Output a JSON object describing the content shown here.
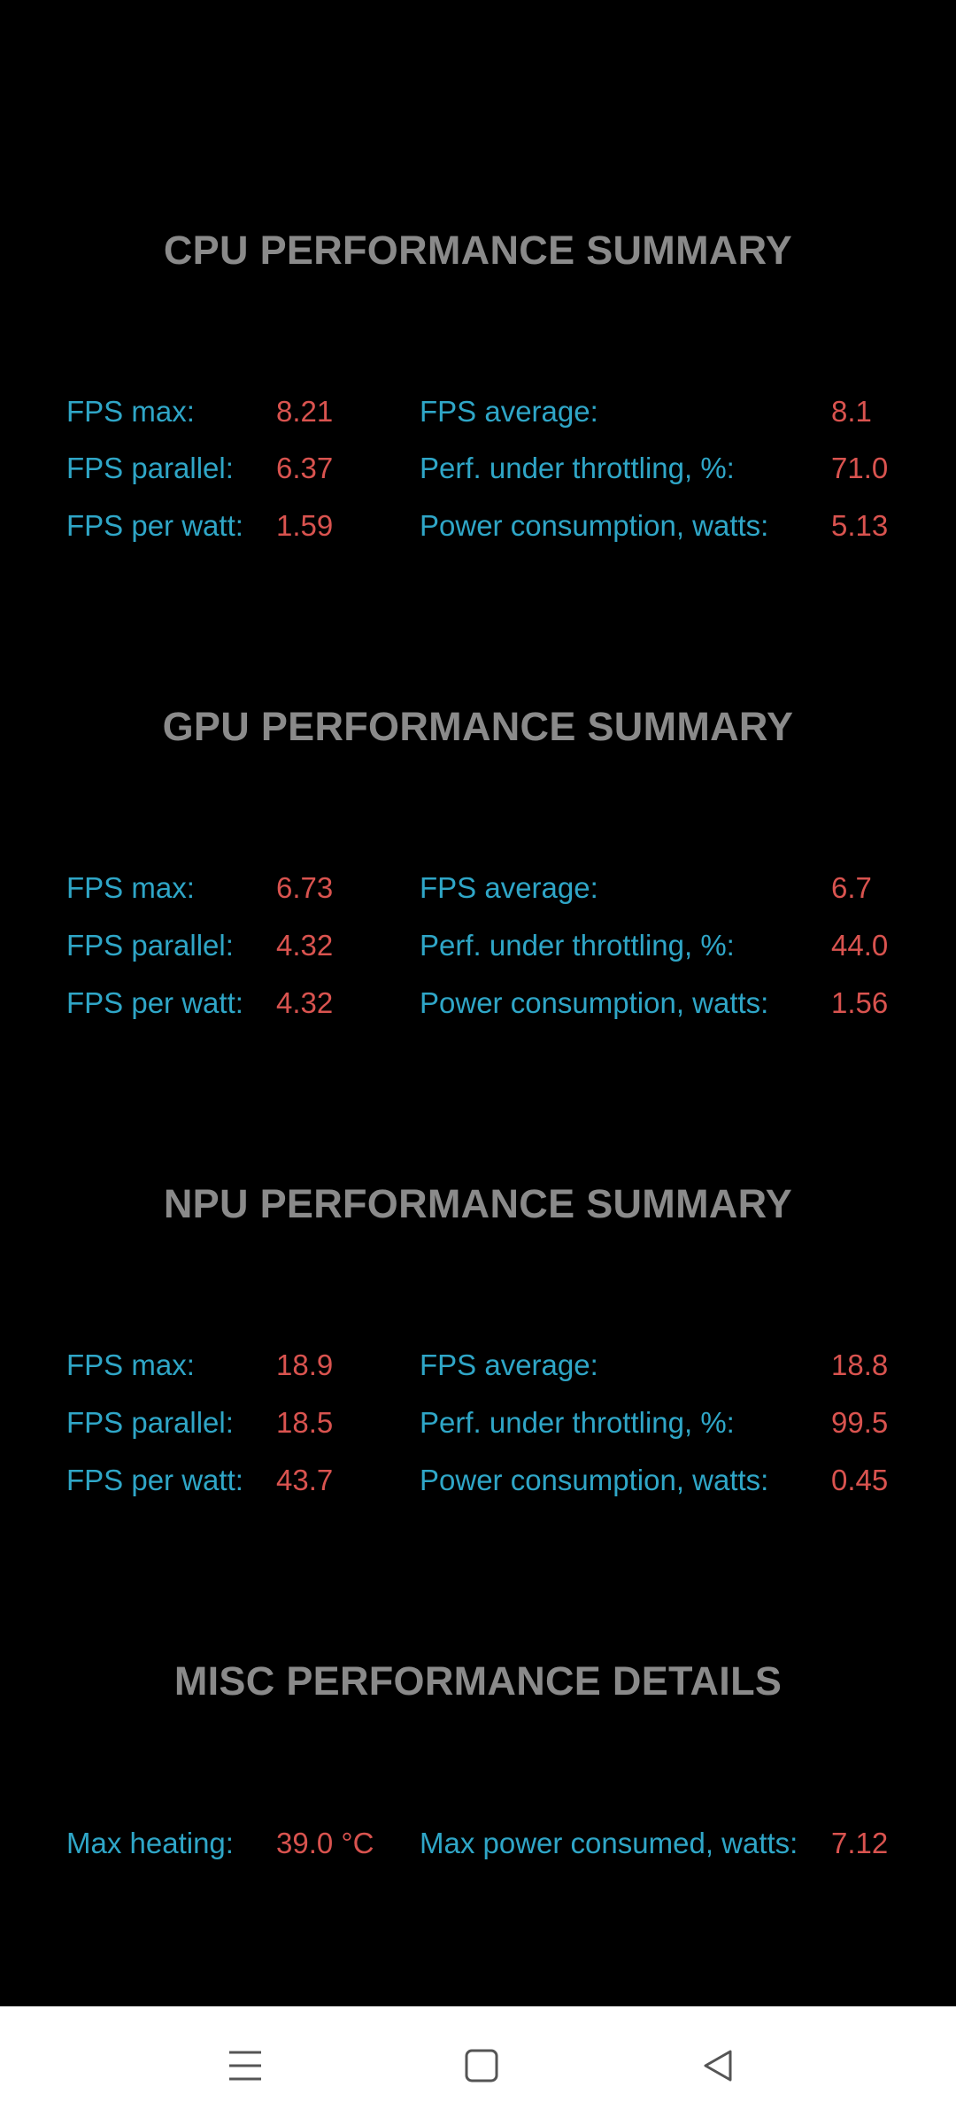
{
  "sections": [
    {
      "title": "CPU PERFORMANCE SUMMARY",
      "rows": [
        {
          "l1": "FPS max:",
          "v1": "8.21",
          "l2": "FPS average:",
          "v2": "8.1"
        },
        {
          "l1": "FPS parallel:",
          "v1": "6.37",
          "l2": "Perf. under throttling, %:",
          "v2": "71.0"
        },
        {
          "l1": "FPS per watt:",
          "v1": "1.59",
          "l2": "Power consumption, watts:",
          "v2": "5.13"
        }
      ]
    },
    {
      "title": "GPU PERFORMANCE SUMMARY",
      "rows": [
        {
          "l1": "FPS max:",
          "v1": "6.73",
          "l2": "FPS average:",
          "v2": "6.7"
        },
        {
          "l1": "FPS parallel:",
          "v1": "4.32",
          "l2": "Perf. under throttling, %:",
          "v2": "44.0"
        },
        {
          "l1": "FPS per watt:",
          "v1": "4.32",
          "l2": "Power consumption, watts:",
          "v2": "1.56"
        }
      ]
    },
    {
      "title": "NPU PERFORMANCE SUMMARY",
      "rows": [
        {
          "l1": "FPS max:",
          "v1": "18.9",
          "l2": "FPS average:",
          "v2": "18.8"
        },
        {
          "l1": "FPS parallel:",
          "v1": "18.5",
          "l2": "Perf. under throttling, %:",
          "v2": "99.5"
        },
        {
          "l1": "FPS per watt:",
          "v1": "43.7",
          "l2": "Power consumption, watts:",
          "v2": "0.45"
        }
      ]
    },
    {
      "title": "MISC PERFORMANCE DETAILS",
      "rows": [
        {
          "l1": "Max heating:",
          "v1": "39.0 °C",
          "l2": "Max power consumed, watts:",
          "v2": "7.12"
        }
      ]
    }
  ],
  "nav": {
    "icons": [
      "menu-icon",
      "home-square-icon",
      "back-triangle-icon"
    ]
  },
  "colors": {
    "background": "#000000",
    "title": "#8a8a8a",
    "label": "#2fa6c7",
    "value": "#d9534f",
    "navbar": "#ffffff",
    "nav_icon": "#555555"
  }
}
